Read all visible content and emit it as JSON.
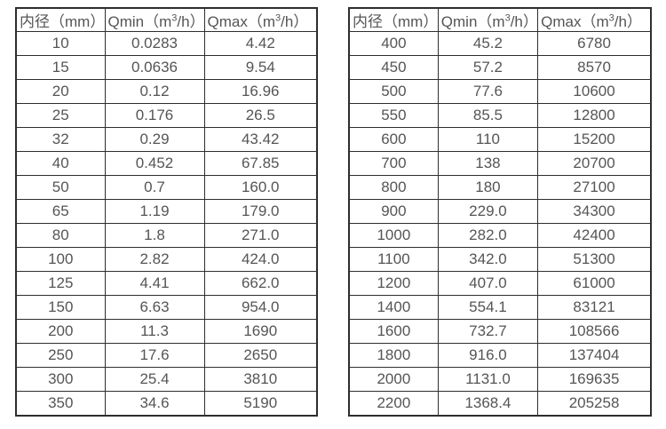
{
  "page": {
    "background_color": "#ffffff",
    "border_color": "#2e2e2e",
    "text_color": "#555555"
  },
  "tables": [
    {
      "name": "flow-spec-table-small-diameters",
      "headers": [
        "内径（mm）",
        "Qmin（m³/h）",
        "Qmax（m³/h）"
      ],
      "rows": [
        [
          "10",
          "0.0283",
          "4.42"
        ],
        [
          "15",
          "0.0636",
          "9.54"
        ],
        [
          "20",
          "0.12",
          "16.96"
        ],
        [
          "25",
          "0.176",
          "26.5"
        ],
        [
          "32",
          "0.29",
          "43.42"
        ],
        [
          "40",
          "0.452",
          "67.85"
        ],
        [
          "50",
          "0.7",
          "160.0"
        ],
        [
          "65",
          "1.19",
          "179.0"
        ],
        [
          "80",
          "1.8",
          "271.0"
        ],
        [
          "100",
          "2.82",
          "424.0"
        ],
        [
          "125",
          "4.41",
          "662.0"
        ],
        [
          "150",
          "6.63",
          "954.0"
        ],
        [
          "200",
          "11.3",
          "1690"
        ],
        [
          "250",
          "17.6",
          "2650"
        ],
        [
          "300",
          "25.4",
          "3810"
        ],
        [
          "350",
          "34.6",
          "5190"
        ]
      ]
    },
    {
      "name": "flow-spec-table-large-diameters",
      "headers": [
        "内径（mm）",
        "Qmin（m³/h）",
        "Qmax（m³/h）"
      ],
      "rows": [
        [
          "400",
          "45.2",
          "6780"
        ],
        [
          "450",
          "57.2",
          "8570"
        ],
        [
          "500",
          "77.6",
          "10600"
        ],
        [
          "550",
          "85.5",
          "12800"
        ],
        [
          "600",
          "110",
          "15200"
        ],
        [
          "700",
          "138",
          "20700"
        ],
        [
          "800",
          "180",
          "27100"
        ],
        [
          "900",
          "229.0",
          "34300"
        ],
        [
          "1000",
          "282.0",
          "42400"
        ],
        [
          "1100",
          "342.0",
          "51300"
        ],
        [
          "1200",
          "407.0",
          "61000"
        ],
        [
          "1400",
          "554.1",
          "83121"
        ],
        [
          "1600",
          "732.7",
          "108566"
        ],
        [
          "1800",
          "916.0",
          "137404"
        ],
        [
          "2000",
          "1131.0",
          "169635"
        ],
        [
          "2200",
          "1368.4",
          "205258"
        ]
      ]
    }
  ]
}
